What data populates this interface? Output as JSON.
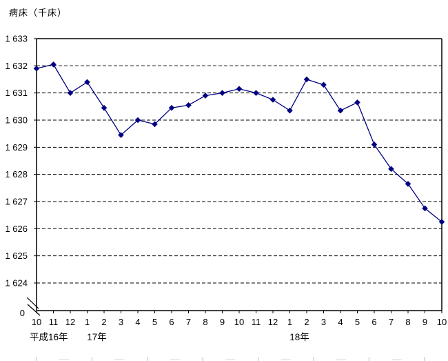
{
  "chart_data": {
    "type": "line",
    "title": "病床（千床）",
    "x_categories": [
      "10",
      "11",
      "12",
      "1",
      "2",
      "3",
      "4",
      "5",
      "6",
      "7",
      "8",
      "9",
      "10",
      "11",
      "12",
      "1",
      "2",
      "3",
      "4",
      "5",
      "6",
      "7",
      "8",
      "9",
      "10"
    ],
    "x_year_labels": [
      {
        "text": "平成16年",
        "index": 0
      },
      {
        "text": "17年",
        "index": 3
      },
      {
        "text": "18年",
        "index": 15
      }
    ],
    "values": [
      1631.9,
      1632.05,
      1631.0,
      1631.4,
      1630.45,
      1629.45,
      1630.0,
      1629.85,
      1630.45,
      1630.55,
      1630.9,
      1631.0,
      1631.15,
      1631.0,
      1630.75,
      1630.35,
      1631.5,
      1631.3,
      1630.35,
      1630.65,
      1629.1,
      1628.2,
      1627.65,
      1626.75,
      1626.25
    ],
    "y_axis": {
      "tick_values": [
        1633,
        1632,
        1631,
        1630,
        1629,
        1628,
        1627,
        1626,
        1625,
        1624
      ],
      "tick_labels": [
        "1 633",
        "1 632",
        "1 631",
        "1 630",
        "1 629",
        "1 628",
        "1 627",
        "1 626",
        "1 625",
        "1 624"
      ],
      "origin_label": "0",
      "axis_break": true
    },
    "ylim_display": [
      1624,
      1633
    ],
    "grid": "horizontal-dashed",
    "legend": "none",
    "marker": "diamond",
    "colors": {
      "series": "#000080",
      "axis": "#000000",
      "text": "#000000",
      "cropped_edge": "#c0c0c0"
    }
  }
}
